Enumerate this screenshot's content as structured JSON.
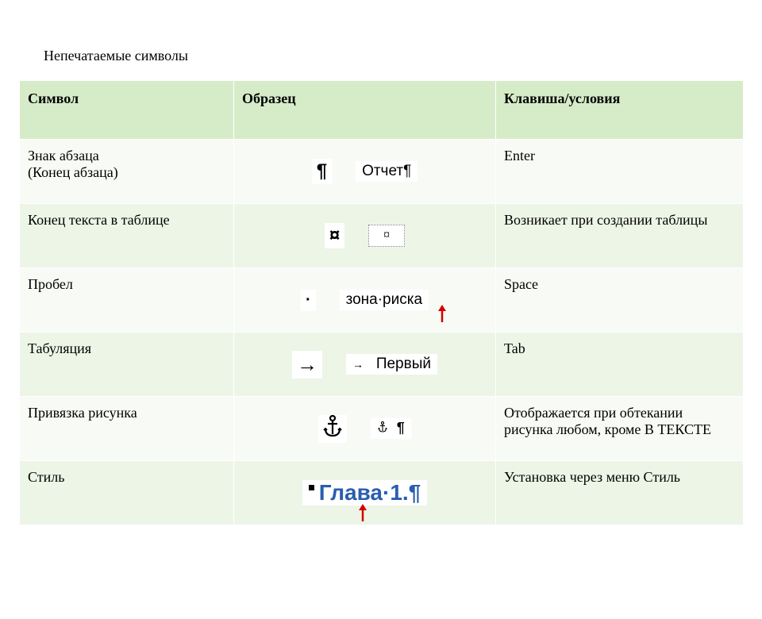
{
  "title": "Непечатаемые символы",
  "table": {
    "header_bg": "#d6ecc8",
    "row_alt_bg": "#ecf5e6",
    "row_bg": "#f8fbf5",
    "columns": [
      "Символ",
      "Образец",
      "Клавиша/условия"
    ],
    "rows": [
      {
        "symbol": "Знак абзаца\n(Конец абзаца)",
        "glyph": "¶",
        "example": "Отчет¶",
        "key": "Enter"
      },
      {
        "symbol": "Конец текста в таблице",
        "glyph": "¤",
        "example_cell": "¤",
        "key": "Возникает при создании таблицы"
      },
      {
        "symbol": "Пробел",
        "glyph": "·",
        "example": "зона·риска",
        "arrow": true,
        "key": "Space"
      },
      {
        "symbol": "Табуляция",
        "glyph": "→",
        "example_tab": "Первый",
        "key": "Tab"
      },
      {
        "symbol": "Привязка рисунка",
        "glyph": "anchor",
        "example_anchor": "¶",
        "key": "Отображается при обтекании рисунка любом, кроме В ТЕКСТЕ"
      },
      {
        "symbol": "Стиль",
        "style_text": "Глава·1.¶",
        "key": "Установка через меню Стиль"
      }
    ]
  },
  "colors": {
    "accent_blue": "#2a5db0",
    "red_arrow": "#d40000"
  }
}
